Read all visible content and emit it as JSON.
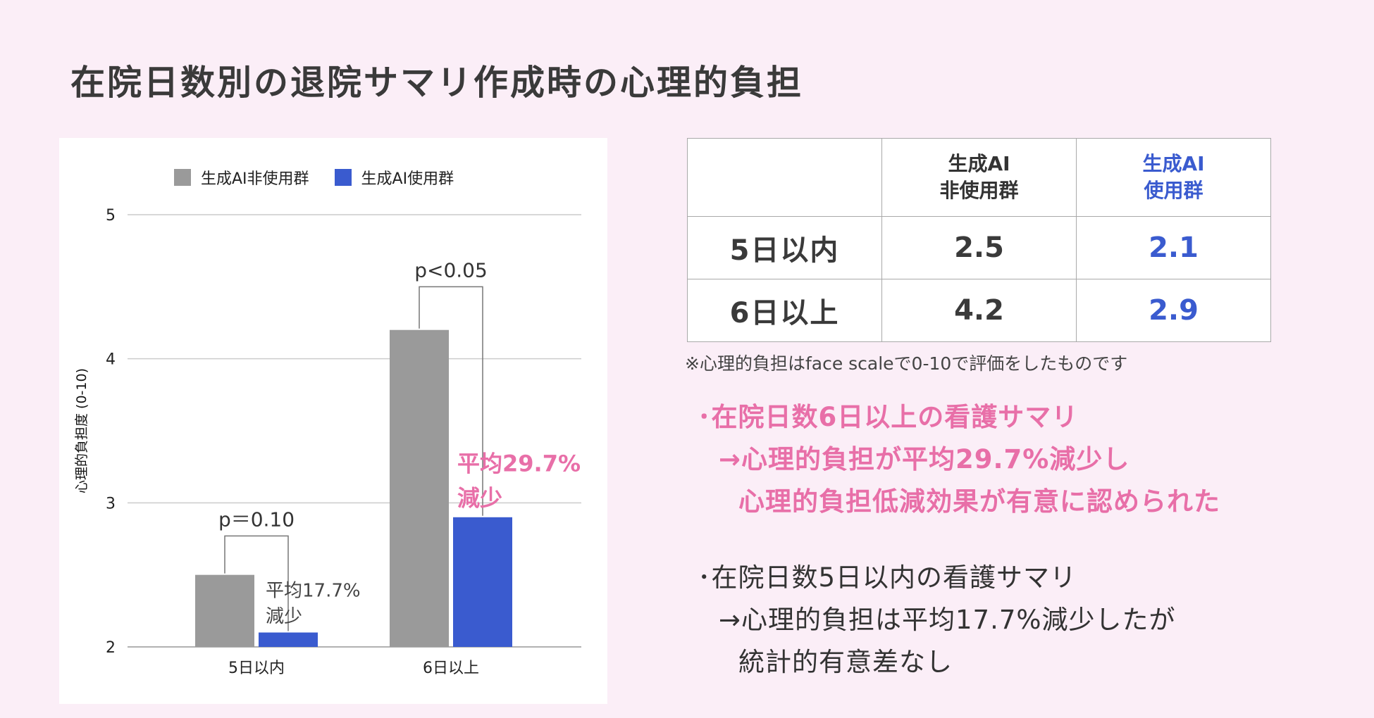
{
  "title": "在院日数別の退院サマリ作成時の心理的負担",
  "colors": {
    "non_ai": "#9a9a9a",
    "ai": "#3a5bcf",
    "accent": "#e86fa8",
    "background": "#fbeef7"
  },
  "chart_data": {
    "type": "bar",
    "categories": [
      "5日以内",
      "6日以上"
    ],
    "series": [
      {
        "name": "生成AI非使用群",
        "values": [
          2.5,
          4.2
        ]
      },
      {
        "name": "生成AI使用群",
        "values": [
          2.1,
          2.9
        ]
      }
    ],
    "ylabel": "心理的負担度 (0-10)",
    "ylim": [
      2,
      5
    ],
    "yticks": [
      "2",
      "3",
      "4",
      "5"
    ],
    "grid": true,
    "legend_position": "top",
    "annotations": {
      "p_5days": "p＝0.10",
      "reduce_5days_line1": "平均17.7%",
      "reduce_5days_line2": "減少",
      "p_6days": "p<0.05",
      "reduce_6days_line1": "平均29.7%",
      "reduce_6days_line2": "減少"
    }
  },
  "table": {
    "header_non_ai_line1": "生成AI",
    "header_non_ai_line2": "非使用群",
    "header_ai_line1": "生成AI",
    "header_ai_line2": "使用群",
    "rows": [
      {
        "label": "5日以内",
        "non_ai": "2.5",
        "ai": "2.1"
      },
      {
        "label": "6日以上",
        "non_ai": "4.2",
        "ai": "2.9"
      }
    ]
  },
  "note": "※心理的負担はface scaleで0-10で評価をしたものです",
  "summary": {
    "p1_line1": "･在院日数6日以上の看護サマリ",
    "p1_line2": "→心理的負担が平均29.7%減少し",
    "p1_line3": "心理的負担低減効果が有意に認められた",
    "p2_line1": "･在院日数5日以内の看護サマリ",
    "p2_line2": "→心理的負担は平均17.7%減少したが",
    "p2_line3": "統計的有意差なし"
  }
}
